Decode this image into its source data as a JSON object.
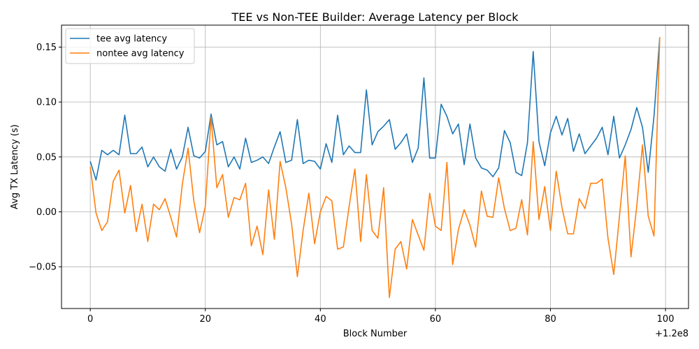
{
  "chart_data": {
    "type": "line",
    "title": "TEE vs Non-TEE Builder: Average Latency per Block",
    "xlabel": "Block Number",
    "ylabel": "Avg TX Latency (s)",
    "x_offset_label": "+1.2e8",
    "x_offset": 120000000,
    "x_tick_labels": [
      "0",
      "20",
      "40",
      "60",
      "80",
      "100"
    ],
    "y_tick_labels": [
      "−0.05",
      "0.00",
      "0.05",
      "0.10",
      "0.15"
    ],
    "xlim": [
      -5,
      104
    ],
    "ylim": [
      -0.088,
      0.17
    ],
    "grid": true,
    "legend_position": "top-left",
    "x": [
      120000000,
      120000001,
      120000002,
      120000003,
      120000004,
      120000005,
      120000006,
      120000007,
      120000008,
      120000009,
      120000010,
      120000011,
      120000012,
      120000013,
      120000014,
      120000015,
      120000016,
      120000017,
      120000018,
      120000019,
      120000020,
      120000021,
      120000022,
      120000023,
      120000024,
      120000025,
      120000026,
      120000027,
      120000028,
      120000029,
      120000030,
      120000031,
      120000032,
      120000033,
      120000034,
      120000035,
      120000036,
      120000037,
      120000038,
      120000039,
      120000040,
      120000041,
      120000042,
      120000043,
      120000044,
      120000045,
      120000046,
      120000047,
      120000048,
      120000049,
      120000050,
      120000051,
      120000052,
      120000053,
      120000054,
      120000055,
      120000056,
      120000057,
      120000058,
      120000059,
      120000060,
      120000061,
      120000062,
      120000063,
      120000064,
      120000065,
      120000066,
      120000067,
      120000068,
      120000069,
      120000070,
      120000071,
      120000072,
      120000073,
      120000074,
      120000075,
      120000076,
      120000077,
      120000078,
      120000079,
      120000080,
      120000081,
      120000082,
      120000083,
      120000084,
      120000085,
      120000086,
      120000087,
      120000088,
      120000089,
      120000090,
      120000091,
      120000092,
      120000093,
      120000094,
      120000095,
      120000096,
      120000097,
      120000098,
      120000099
    ],
    "series": [
      {
        "name": "tee avg latency",
        "color": "#1f77b4",
        "values": [
          0.046,
          0.029,
          0.056,
          0.052,
          0.056,
          0.052,
          0.088,
          0.053,
          0.053,
          0.059,
          0.041,
          0.05,
          0.041,
          0.037,
          0.057,
          0.039,
          0.05,
          0.077,
          0.051,
          0.049,
          0.055,
          0.089,
          0.061,
          0.064,
          0.041,
          0.05,
          0.039,
          0.067,
          0.045,
          0.047,
          0.05,
          0.044,
          0.059,
          0.073,
          0.045,
          0.047,
          0.084,
          0.044,
          0.047,
          0.046,
          0.039,
          0.062,
          0.045,
          0.088,
          0.052,
          0.06,
          0.054,
          0.054,
          0.111,
          0.061,
          0.073,
          0.078,
          0.084,
          0.057,
          0.063,
          0.071,
          0.045,
          0.058,
          0.122,
          0.049,
          0.049,
          0.098,
          0.087,
          0.071,
          0.08,
          0.043,
          0.08,
          0.049,
          0.04,
          0.038,
          0.032,
          0.04,
          0.074,
          0.063,
          0.036,
          0.033,
          0.063,
          0.146,
          0.064,
          0.042,
          0.072,
          0.087,
          0.07,
          0.085,
          0.055,
          0.071,
          0.053,
          0.06,
          0.067,
          0.077,
          0.052,
          0.087,
          0.049,
          0.061,
          0.075,
          0.095,
          0.077,
          0.036,
          0.087,
          0.159
        ]
      },
      {
        "name": "nontee avg latency",
        "color": "#ff7f0e",
        "values": [
          0.041,
          -0.001,
          -0.017,
          -0.009,
          0.028,
          0.038,
          -0.001,
          0.024,
          -0.018,
          0.007,
          -0.027,
          0.007,
          0.002,
          0.012,
          -0.005,
          -0.023,
          0.025,
          0.058,
          0.01,
          -0.019,
          0.005,
          0.086,
          0.022,
          0.034,
          -0.005,
          0.013,
          0.011,
          0.026,
          -0.031,
          -0.013,
          -0.039,
          0.02,
          -0.025,
          0.046,
          0.022,
          -0.011,
          -0.059,
          -0.017,
          0.017,
          -0.029,
          0.0,
          0.014,
          0.01,
          -0.034,
          -0.032,
          0.005,
          0.039,
          -0.027,
          0.034,
          -0.017,
          -0.024,
          0.022,
          -0.078,
          -0.034,
          -0.027,
          -0.052,
          -0.007,
          -0.021,
          -0.035,
          0.017,
          -0.013,
          -0.017,
          0.045,
          -0.048,
          -0.016,
          0.002,
          -0.012,
          -0.032,
          0.019,
          -0.004,
          -0.005,
          0.031,
          0.003,
          -0.017,
          -0.015,
          0.011,
          -0.021,
          0.064,
          -0.007,
          0.023,
          -0.017,
          0.037,
          0.004,
          -0.02,
          -0.02,
          0.012,
          0.003,
          0.026,
          0.026,
          0.03,
          -0.024,
          -0.057,
          -0.004,
          0.051,
          -0.041,
          0.005,
          0.061,
          -0.004,
          -0.022,
          0.159
        ]
      }
    ]
  }
}
